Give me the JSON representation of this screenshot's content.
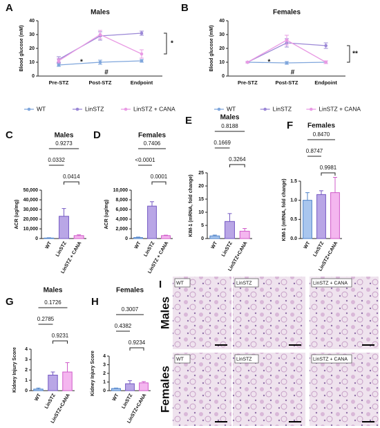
{
  "chart_data": [
    {
      "type": "line",
      "panel": "A",
      "title": "Males",
      "ylabel": "Blood glucose (mM)",
      "categories": [
        "Pre-STZ",
        "Post-STZ",
        "Endpoint"
      ],
      "series": [
        {
          "name": "WT",
          "color": "#7fa6dc",
          "values": [
            8,
            10,
            11
          ],
          "errors": [
            1,
            1.5,
            1
          ]
        },
        {
          "name": "LinSTZ",
          "color": "#9b87d6",
          "values": [
            12,
            29,
            31
          ],
          "errors": [
            2,
            3,
            1.5
          ]
        },
        {
          "name": "LinSTZ + CANA",
          "color": "#e99be4",
          "values": [
            11,
            30,
            16
          ],
          "errors": [
            1.5,
            3,
            3
          ]
        }
      ],
      "ylim": [
        0,
        40
      ],
      "yticks": [
        0,
        10,
        20,
        30,
        40
      ],
      "annotations": [
        "*",
        "#",
        "*"
      ]
    },
    {
      "type": "line",
      "panel": "B",
      "title": "Females",
      "ylabel": "Blood glucose (mM)",
      "categories": [
        "Pre-STZ",
        "Post-STZ",
        "Endpoint"
      ],
      "series": [
        {
          "name": "WT",
          "color": "#7fa6dc",
          "values": [
            10,
            9.5,
            10
          ],
          "errors": [
            0.5,
            1,
            1
          ]
        },
        {
          "name": "LinSTZ",
          "color": "#9b87d6",
          "values": [
            10,
            24,
            22
          ],
          "errors": [
            0.5,
            3,
            2
          ]
        },
        {
          "name": "LinSTZ + CANA",
          "color": "#e99be4",
          "values": [
            10,
            26,
            10
          ],
          "errors": [
            0.5,
            3.5,
            1
          ]
        }
      ],
      "ylim": [
        0,
        40
      ],
      "yticks": [
        0,
        10,
        20,
        30,
        40
      ],
      "annotations": [
        "*",
        "#",
        "**"
      ]
    },
    {
      "type": "bar",
      "panel": "C",
      "title": "Males",
      "ylabel": "ACR (ug/mg)",
      "categories": [
        "WT",
        "LinSTZ",
        "LinSTZ + CANA"
      ],
      "values": [
        500,
        23000,
        3000
      ],
      "errors": [
        300,
        8000,
        800
      ],
      "colors": [
        "#a9c6ee",
        "#b9a6e6",
        "#f4b6ef"
      ],
      "ylim": [
        0,
        50000
      ],
      "yticks": [
        0,
        {
          "value": 10000,
          "label": "10,000"
        },
        {
          "value": 20000,
          "label": "20,000"
        },
        {
          "value": 30000,
          "label": "30,000"
        },
        {
          "value": 40000,
          "label": "40,000"
        },
        {
          "value": 50000,
          "label": "50,000"
        }
      ],
      "annotations": [
        "0.0332",
        "0.9273",
        "0.0414"
      ]
    },
    {
      "type": "bar",
      "panel": "D",
      "title": "Females",
      "ylabel": "ACR (ug/mg)",
      "categories": [
        "WT",
        "LinSTZ",
        "LinSTZ + CANA"
      ],
      "values": [
        200,
        6700,
        600
      ],
      "errors": [
        100,
        900,
        100
      ],
      "colors": [
        "#a9c6ee",
        "#b9a6e6",
        "#f4b6ef"
      ],
      "ylim": [
        0,
        10000
      ],
      "yticks": [
        0,
        {
          "value": 2000,
          "label": "2,000"
        },
        {
          "value": 4000,
          "label": "4,000"
        },
        {
          "value": 6000,
          "label": "6,000"
        },
        {
          "value": 8000,
          "label": "8,000"
        },
        {
          "value": 10000,
          "label": "10,000"
        }
      ],
      "annotations": [
        "<0.0001",
        "0.7406",
        "0.0001"
      ]
    },
    {
      "type": "bar",
      "panel": "E",
      "title": "Males",
      "ylabel": "KIM-1 (mRNA, fold change)",
      "categories": [
        "WT",
        "LinSTZ",
        "LinSTZ+CANA"
      ],
      "values": [
        1,
        6.5,
        2.8
      ],
      "errors": [
        0.3,
        3,
        1
      ],
      "colors": [
        "#a9c6ee",
        "#b9a6e6",
        "#f4b6ef"
      ],
      "ylim": [
        0,
        25
      ],
      "yticks": [
        0,
        5,
        10,
        15,
        20,
        25
      ],
      "annotations": [
        "0.1669",
        "0.8188",
        "0.3264"
      ]
    },
    {
      "type": "bar",
      "panel": "F",
      "title": "Females",
      "ylabel": "KIM-1 (mRNA, fold change)",
      "categories": [
        "WT",
        "LinSTZ",
        "LinSTZ+CANA"
      ],
      "values": [
        1.0,
        1.15,
        1.2
      ],
      "errors": [
        0.2,
        0.1,
        0.4
      ],
      "colors": [
        "#a9c6ee",
        "#b9a6e6",
        "#f4b6ef"
      ],
      "ylim": [
        0,
        1.5
      ],
      "yticks": [
        {
          "value": 0,
          "label": "0.0"
        },
        0.5,
        {
          "value": 1,
          "label": "1.0"
        },
        1.5
      ],
      "annotations": [
        "0.8747",
        "0.8470",
        "0.9981"
      ]
    },
    {
      "type": "bar",
      "panel": "G",
      "title": "Males",
      "ylabel": "Kidney Injury Score",
      "categories": [
        "WT",
        "LinSTZ",
        "LinSTZ+CANA"
      ],
      "values": [
        0.15,
        1.5,
        1.8
      ],
      "errors": [
        0.1,
        0.3,
        0.9
      ],
      "colors": [
        "#a9c6ee",
        "#b9a6e6",
        "#f4b6ef"
      ],
      "ylim": [
        0,
        4
      ],
      "yticks": [
        0,
        1,
        2,
        3,
        4
      ],
      "annotations": [
        "0.2785",
        "0.1726",
        "0.9231"
      ]
    },
    {
      "type": "bar",
      "panel": "H",
      "title": "Females",
      "ylabel": "Kidney Injury Score",
      "categories": [
        "WT",
        "LinSTZ",
        "LinSTZ+CANA"
      ],
      "values": [
        0.25,
        0.8,
        0.9
      ],
      "errors": [
        0.05,
        0.35,
        0.15
      ],
      "colors": [
        "#a9c6ee",
        "#b9a6e6",
        "#f4b6ef"
      ],
      "ylim": [
        0,
        4
      ],
      "yticks": [
        0,
        1,
        2,
        3,
        4
      ],
      "annotations": [
        "0.4382",
        "0.3007",
        "0.9234"
      ]
    }
  ],
  "histology": {
    "panel": "I",
    "rows": [
      "Males",
      "Females"
    ],
    "columns": [
      "WT",
      "LinSTZ",
      "LinSTZ + CANA"
    ]
  }
}
